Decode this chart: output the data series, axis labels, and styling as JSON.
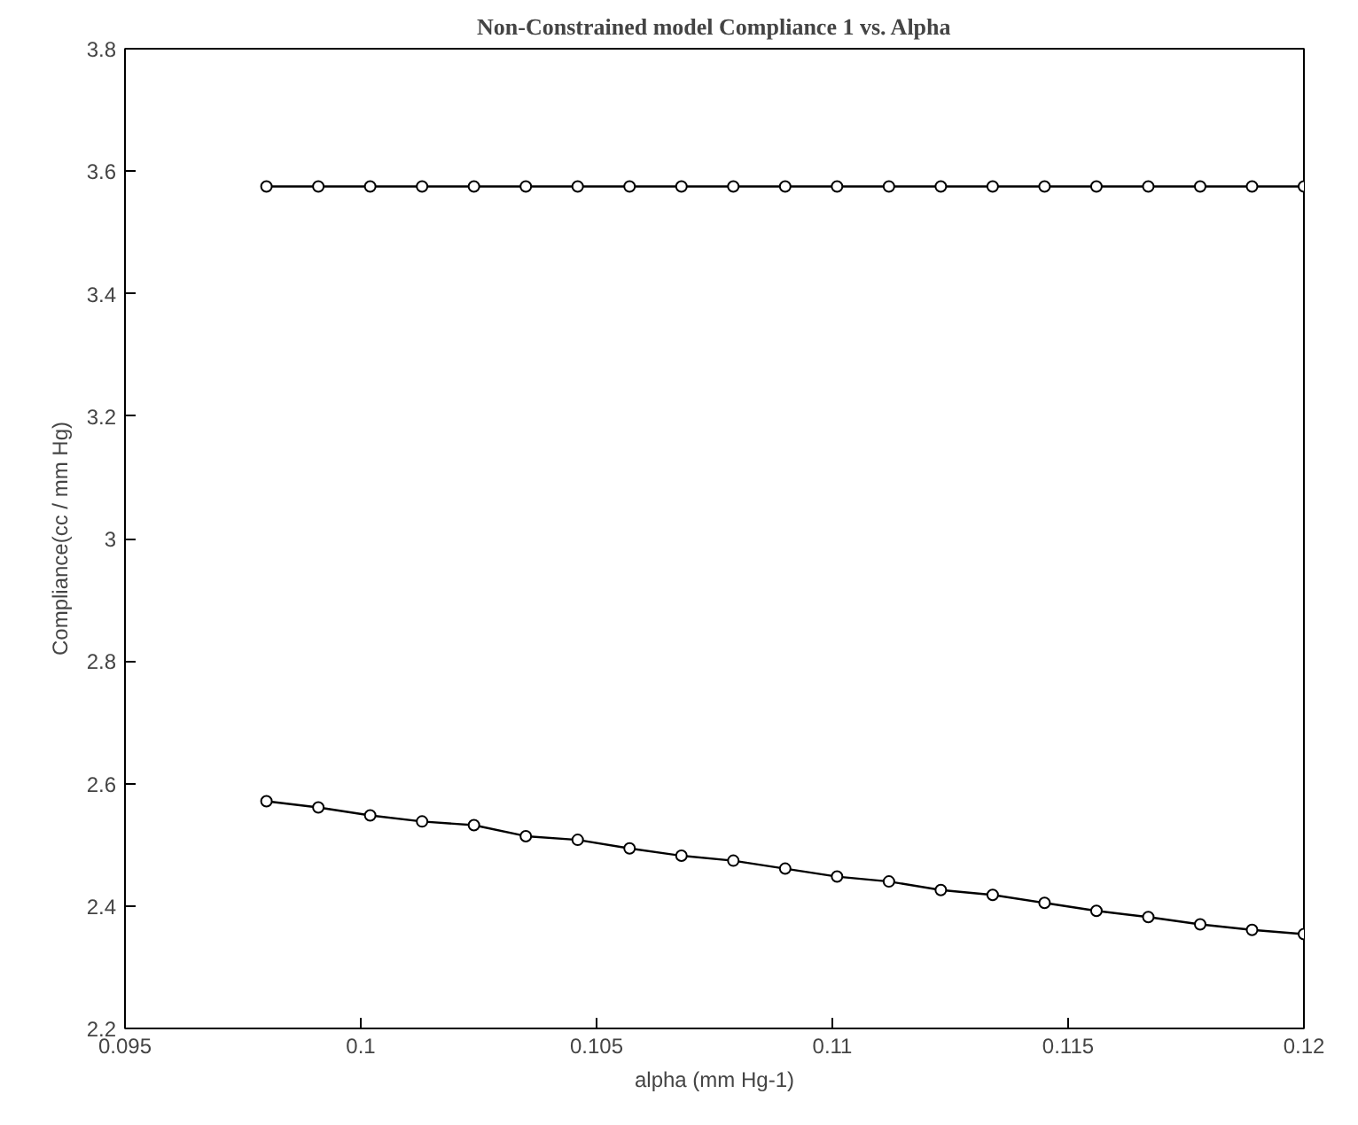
{
  "chart_data": {
    "type": "line",
    "title": "Non-Constrained model Compliance 1 vs. Alpha",
    "xlabel": "alpha (mm Hg-1)",
    "ylabel": "Compliance(cc / mm Hg)",
    "x": [
      0.098,
      0.0991,
      0.1002,
      0.1013,
      0.1024,
      0.1035,
      0.1046,
      0.1057,
      0.1068,
      0.1079,
      0.109,
      0.1101,
      0.1112,
      0.1123,
      0.1134,
      0.1145,
      0.1156,
      0.1167,
      0.1178,
      0.1189,
      0.12
    ],
    "series": [
      {
        "color": "#000000",
        "values": [
          3.575,
          3.575,
          3.575,
          3.575,
          3.575,
          3.575,
          3.575,
          3.575,
          3.575,
          3.575,
          3.575,
          3.575,
          3.575,
          3.575,
          3.575,
          3.575,
          3.575,
          3.575,
          3.575,
          3.575,
          3.575
        ]
      },
      {
        "color": "#000000",
        "values": [
          2.571,
          2.561,
          2.548,
          2.538,
          2.532,
          2.514,
          2.508,
          2.494,
          2.482,
          2.474,
          2.461,
          2.448,
          2.44,
          2.426,
          2.418,
          2.405,
          2.392,
          2.382,
          2.37,
          2.361,
          2.354
        ]
      }
    ],
    "xlim": [
      0.095,
      0.12
    ],
    "xticks": [
      0.095,
      0.1,
      0.105,
      0.11,
      0.115,
      0.12
    ],
    "ylim": [
      2.2,
      3.8
    ],
    "yticks": [
      2.2,
      2.4,
      2.6,
      2.8,
      3,
      3.2,
      3.4,
      3.6,
      3.8
    ],
    "marker": "circle",
    "line_style": "solid",
    "grid": false
  }
}
